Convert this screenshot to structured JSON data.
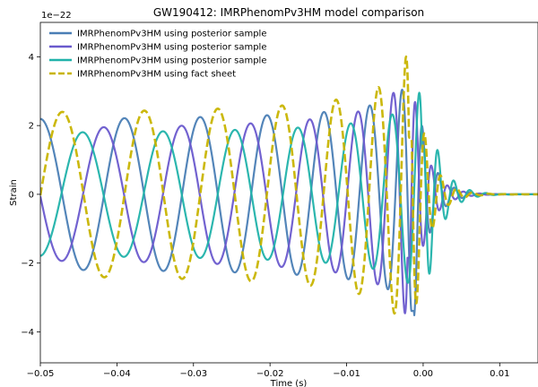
{
  "chart_data": {
    "type": "line",
    "title": "GW190412: IMRPhenomPv3HM model comparison",
    "xlabel": "Time (s)",
    "ylabel": "Strain",
    "y_scale_label": "1e−22",
    "xlim": [
      -0.05,
      0.015
    ],
    "ylim": [
      -4.9,
      5.0
    ],
    "xticks": [
      -0.05,
      -0.04,
      -0.03,
      -0.02,
      -0.01,
      0.0,
      0.01
    ],
    "xtick_labels": [
      "−0.05",
      "−0.04",
      "−0.03",
      "−0.02",
      "−0.01",
      "0.00",
      "0.01"
    ],
    "yticks": [
      -4,
      -2,
      0,
      2,
      4
    ],
    "ytick_labels": [
      "−4",
      "−2",
      "0",
      "2",
      "4"
    ],
    "grid": false,
    "legend_position": "top-left",
    "series": [
      {
        "name": "IMRPhenomPv3HM using posterior sample",
        "color": "#4a7eb5",
        "dash": "solid",
        "waveform": {
          "t_peak": -0.0012,
          "peak_amp": 3.6,
          "base_amp": 2.1,
          "period_at_start": 0.0115,
          "phase": 0.0
        }
      },
      {
        "name": "IMRPhenomPv3HM using posterior sample",
        "color": "#6a5acd",
        "dash": "solid",
        "waveform": {
          "t_peak": -0.0017,
          "peak_amp": 3.9,
          "base_amp": 1.8,
          "period_at_start": 0.0115,
          "phase": 1.6
        }
      },
      {
        "name": "IMRPhenomPv3HM using posterior sample",
        "color": "#20b2aa",
        "dash": "solid",
        "waveform": {
          "t_peak": 0.0002,
          "peak_amp": 3.3,
          "base_amp": 1.7,
          "period_at_start": 0.0115,
          "phase": 3.2
        }
      },
      {
        "name": "IMRPhenomPv3HM using fact sheet",
        "color": "#c8b400",
        "dash": "dashed",
        "waveform": {
          "t_peak": -0.0015,
          "peak_amp": 4.5,
          "base_amp": 2.25,
          "period_at_start": 0.0115,
          "phase": 4.7
        }
      }
    ]
  }
}
